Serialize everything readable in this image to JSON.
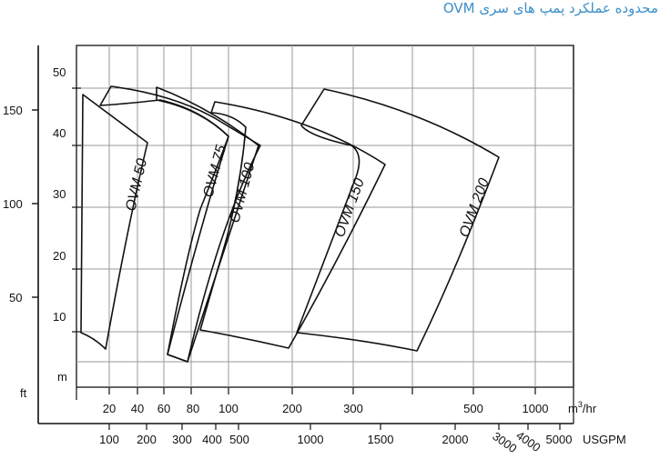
{
  "chart_data": {
    "type": "line",
    "title": "محدوده عملکرد پمپ های سری OVM",
    "x_axis_m3hr": {
      "ticks": [
        "20",
        "40",
        "60",
        "80",
        "100",
        "200",
        "300",
        "500",
        "1000"
      ],
      "unit_prefix": "m",
      "unit_sup": "3",
      "unit_suffix": "/hr"
    },
    "x_axis_usgpm": {
      "ticks": [
        "100",
        "200",
        "300",
        "400",
        "500",
        "1000",
        "1500",
        "2000",
        "3000",
        "4000",
        "5000"
      ],
      "unit": "USGPM"
    },
    "y_axis_m": {
      "ticks": [
        "10",
        "20",
        "30",
        "40",
        "50"
      ],
      "unit": "m"
    },
    "y_axis_ft": {
      "ticks": [
        "50",
        "100",
        "150"
      ],
      "unit": "ft"
    },
    "series": [
      {
        "name": "OVM 50",
        "q_min": 12,
        "q_max": 50,
        "head_min": 7,
        "head_max": 48
      },
      {
        "name": "OVM 75",
        "q_min": 20,
        "q_max": 90,
        "head_min": 6,
        "head_max": 50
      },
      {
        "name": "OVM 100",
        "q_min": 60,
        "q_max": 140,
        "head_min": 5,
        "head_max": 50
      },
      {
        "name": "OVM 150",
        "q_min": 80,
        "q_max": 350,
        "head_min": 6,
        "head_max": 47
      },
      {
        "name": "OVM 200",
        "q_min": 200,
        "q_max": 700,
        "head_min": 6,
        "head_max": 49
      }
    ],
    "grid": true
  }
}
